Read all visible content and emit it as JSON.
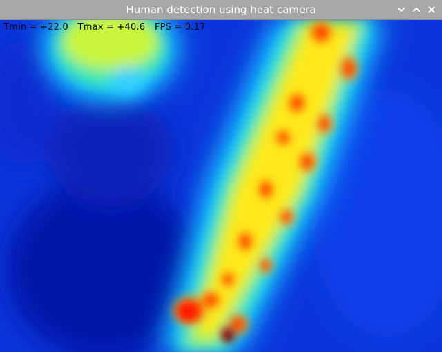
{
  "window": {
    "title": "Human detection using heat camera",
    "controls": {
      "minimize_icon": "chevron-down-icon",
      "maximize_icon": "chevron-up-icon",
      "close_icon": "close-icon"
    }
  },
  "stats": {
    "tmin_label": "Tmin =",
    "tmin_value": "+22.0",
    "tmax_label": "Tmax =",
    "tmax_value": "+40.6",
    "fps_label": "FPS =",
    "fps_value": "0.17"
  },
  "colors": {
    "titlebar": "#a7a7a7",
    "background_cold": "#0a2fd6",
    "accent_hot": "#ff2a00"
  }
}
